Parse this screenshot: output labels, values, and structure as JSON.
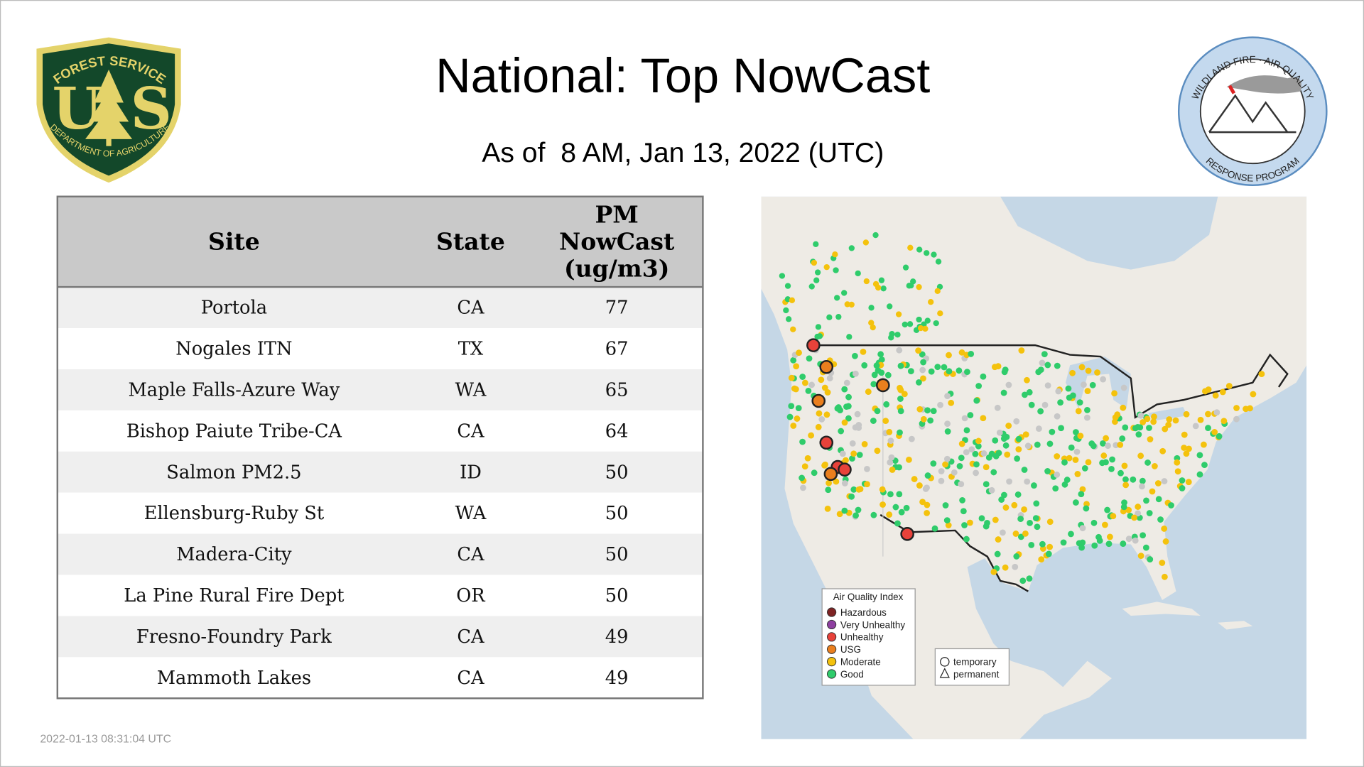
{
  "logos": {
    "usfs": {
      "arc_top": "FOREST SERVICE",
      "letter_left": "U",
      "letter_right": "S",
      "arc_bottom": "DEPARTMENT OF AGRICULTURE"
    },
    "wfaqrp": {
      "arc_top": "WILDLAND FIRE · AIR QUALITY",
      "arc_bottom": "RESPONSE PROGRAM"
    }
  },
  "title": "National: Top NowCast",
  "subtitle": "As of  8 AM, Jan 13, 2022 (UTC)",
  "table": {
    "header": [
      "Site",
      "State",
      [
        "PM",
        "NowCast",
        "(ug/m3)"
      ]
    ],
    "rows": [
      [
        "Portola",
        "CA",
        77
      ],
      [
        "Nogales ITN",
        "TX",
        67
      ],
      [
        "Maple Falls-Azure Way",
        "WA",
        65
      ],
      [
        "Bishop Paiute Tribe-CA",
        "CA",
        64
      ],
      [
        "Salmon PM2.5",
        "ID",
        50
      ],
      [
        "Ellensburg-Ruby St",
        "WA",
        50
      ],
      [
        "Madera-City",
        "CA",
        50
      ],
      [
        "La Pine Rural Fire Dept",
        "OR",
        50
      ],
      [
        "Fresno-Foundry Park",
        "CA",
        49
      ],
      [
        "Mammoth Lakes",
        "CA",
        49
      ]
    ]
  },
  "map": {
    "legend": {
      "title": "Air Quality Index",
      "items": [
        {
          "name": "Hazardous",
          "color": "#7e2323"
        },
        {
          "name": "Very Unhealthy",
          "color": "#8e3fa0"
        },
        {
          "name": "Unhealthy",
          "color": "#e8423a"
        },
        {
          "name": "USG",
          "color": "#ea7f1e"
        },
        {
          "name": "Moderate",
          "color": "#f4c20d"
        },
        {
          "name": "Good",
          "color": "#2fcc6b"
        }
      ]
    },
    "shapes": [
      "temporary",
      "permanent"
    ]
  },
  "timestamp": "2022-01-13 08:31:04 UTC"
}
